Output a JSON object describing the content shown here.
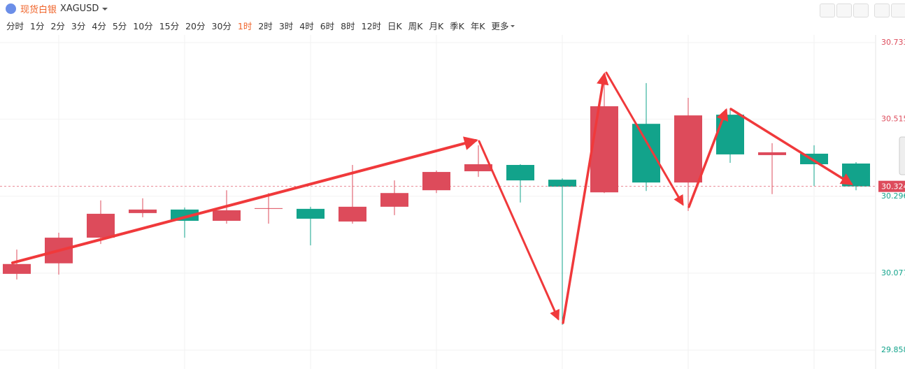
{
  "header": {
    "name": "现货白银",
    "symbol": "XAGUSD"
  },
  "timeframes": [
    {
      "label": "分时"
    },
    {
      "label": "1分"
    },
    {
      "label": "2分"
    },
    {
      "label": "3分"
    },
    {
      "label": "4分"
    },
    {
      "label": "5分"
    },
    {
      "label": "10分"
    },
    {
      "label": "15分"
    },
    {
      "label": "20分"
    },
    {
      "label": "30分"
    },
    {
      "label": "1时",
      "active": true
    },
    {
      "label": "2时"
    },
    {
      "label": "3时"
    },
    {
      "label": "4时"
    },
    {
      "label": "6时"
    },
    {
      "label": "8时"
    },
    {
      "label": "12时"
    },
    {
      "label": "日K"
    },
    {
      "label": "周K"
    },
    {
      "label": "月K"
    },
    {
      "label": "季K"
    },
    {
      "label": "年K"
    },
    {
      "label": "更多"
    }
  ],
  "chart_data": {
    "type": "candlestick",
    "up_color": "#dd4b5b",
    "down_color": "#12a38b",
    "ylim": [
      29.84,
      30.755
    ],
    "yticks": [
      30.733,
      30.515,
      30.296,
      30.077,
      29.858
    ],
    "grid": true,
    "current_price": 30.324,
    "open": [
      30.075,
      30.105,
      30.178,
      30.248,
      30.258,
      30.226,
      30.261,
      30.26,
      30.224,
      30.266,
      30.313,
      30.367,
      30.385,
      30.343,
      30.307,
      30.502,
      30.335,
      30.528,
      30.413,
      30.417,
      30.389
    ],
    "high": [
      30.144,
      30.192,
      30.284,
      30.29,
      30.264,
      30.313,
      30.305,
      30.266,
      30.385,
      30.341,
      30.369,
      30.441,
      30.387,
      30.347,
      30.636,
      30.618,
      30.576,
      30.546,
      30.447,
      30.441,
      30.393
    ],
    "low": [
      30.059,
      30.073,
      30.16,
      30.236,
      30.178,
      30.218,
      30.218,
      30.156,
      30.218,
      30.242,
      30.305,
      30.351,
      30.278,
      29.93,
      30.305,
      30.311,
      30.254,
      30.391,
      30.302,
      30.325,
      30.313
    ],
    "close": [
      30.103,
      30.178,
      30.246,
      30.258,
      30.226,
      30.256,
      30.262,
      30.232,
      30.266,
      30.305,
      30.365,
      30.387,
      30.341,
      30.323,
      30.552,
      30.335,
      30.526,
      30.415,
      30.421,
      30.387,
      30.324
    ]
  }
}
